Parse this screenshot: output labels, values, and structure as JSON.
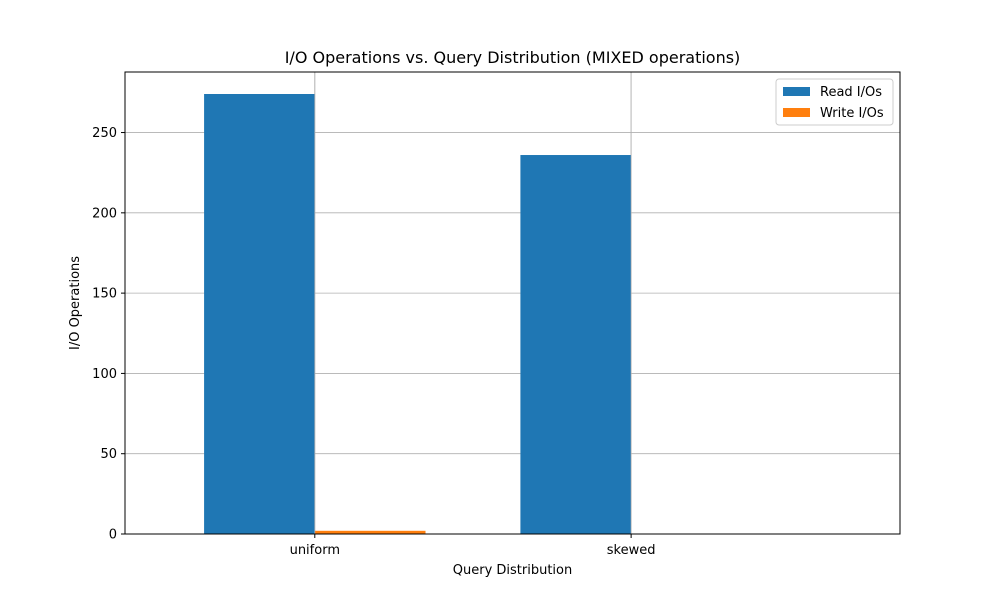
{
  "chart_data": {
    "type": "bar",
    "title": "I/O Operations vs. Query Distribution (MIXED operations)",
    "xlabel": "Query Distribution",
    "ylabel": "I/O Operations",
    "categories": [
      "uniform",
      "skewed"
    ],
    "series": [
      {
        "name": "Read I/Os",
        "values": [
          274,
          236
        ],
        "color": "#1f77b4"
      },
      {
        "name": "Write I/Os",
        "values": [
          2,
          0
        ],
        "color": "#ff7f0e"
      }
    ],
    "ylim": [
      0,
      287.7
    ],
    "yticks": [
      0,
      50,
      100,
      150,
      200,
      250
    ],
    "grid": true,
    "legend_position": "top-right"
  }
}
